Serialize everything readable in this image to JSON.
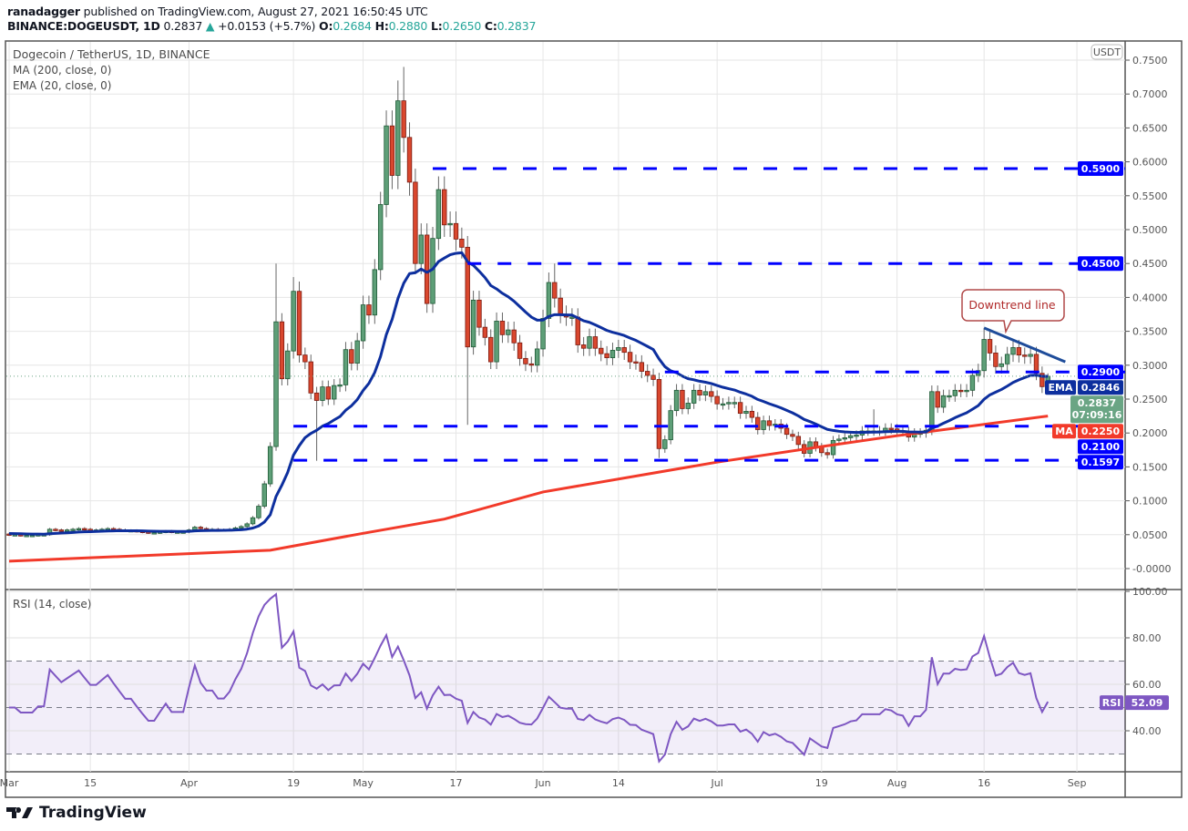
{
  "header": {
    "author": "ranadagger",
    "published": " published on TradingView.com, August 27, 2021 16:50:45 UTC",
    "symbol": "BINANCE:DOGEUSDT, 1D",
    "last": "0.2837",
    "change": "+0.0153 (+5.7%)",
    "o_label": "O:",
    "o": "0.2684",
    "h_label": "H:",
    "h": "0.2880",
    "l_label": "L:",
    "l": "0.2650",
    "c_label": "C:",
    "c": "0.2837"
  },
  "legend": {
    "title": "Dogecoin / TetherUS, 1D, BINANCE",
    "ma": "MA (200, close, 0)",
    "ema": "EMA (20, close, 0)",
    "rsi": "RSI (14, close)"
  },
  "footer": {
    "brand": "TradingView"
  },
  "colors": {
    "up": "#5e9f78",
    "down": "#d9472e",
    "ema": "#0d2f9e",
    "ma": "#f23a2a",
    "level": "#0000ff",
    "rsi": "#7e57c2",
    "last": "#6aa584"
  },
  "chart_data": {
    "type": "candlestick",
    "title": "Dogecoin / TetherUS, 1D, BINANCE",
    "start_date": "2021-03-01",
    "closes": [
      0.05,
      0.05,
      0.049,
      0.049,
      0.049,
      0.05,
      0.05,
      0.058,
      0.057,
      0.056,
      0.057,
      0.058,
      0.059,
      0.058,
      0.057,
      0.057,
      0.058,
      0.059,
      0.058,
      0.057,
      0.056,
      0.056,
      0.055,
      0.054,
      0.053,
      0.053,
      0.054,
      0.055,
      0.054,
      0.054,
      0.054,
      0.057,
      0.061,
      0.059,
      0.058,
      0.058,
      0.057,
      0.057,
      0.058,
      0.06,
      0.062,
      0.066,
      0.075,
      0.092,
      0.125,
      0.18,
      0.364,
      0.28,
      0.321,
      0.409,
      0.315,
      0.305,
      0.259,
      0.248,
      0.268,
      0.25,
      0.27,
      0.271,
      0.323,
      0.303,
      0.336,
      0.389,
      0.374,
      0.441,
      0.537,
      0.653,
      0.58,
      0.69,
      0.636,
      0.57,
      0.45,
      0.492,
      0.391,
      0.487,
      0.559,
      0.507,
      0.509,
      0.486,
      0.474,
      0.327,
      0.396,
      0.356,
      0.341,
      0.305,
      0.365,
      0.345,
      0.352,
      0.333,
      0.31,
      0.302,
      0.3,
      0.324,
      0.369,
      0.422,
      0.399,
      0.375,
      0.371,
      0.371,
      0.33,
      0.325,
      0.342,
      0.325,
      0.317,
      0.311,
      0.322,
      0.326,
      0.319,
      0.305,
      0.304,
      0.291,
      0.285,
      0.279,
      0.177,
      0.19,
      0.233,
      0.263,
      0.236,
      0.244,
      0.263,
      0.256,
      0.261,
      0.254,
      0.243,
      0.243,
      0.245,
      0.245,
      0.229,
      0.232,
      0.223,
      0.205,
      0.218,
      0.211,
      0.213,
      0.207,
      0.198,
      0.195,
      0.183,
      0.17,
      0.187,
      0.179,
      0.171,
      0.168,
      0.189,
      0.191,
      0.193,
      0.196,
      0.197,
      0.203,
      0.203,
      0.203,
      0.203,
      0.207,
      0.206,
      0.203,
      0.202,
      0.194,
      0.2,
      0.2,
      0.204,
      0.261,
      0.238,
      0.255,
      0.255,
      0.263,
      0.262,
      0.263,
      0.285,
      0.292,
      0.338,
      0.318,
      0.298,
      0.302,
      0.316,
      0.326,
      0.315,
      0.313,
      0.316,
      0.288,
      0.2684,
      0.2837
    ],
    "first_open": 0.051,
    "wick_overrides": [
      {
        "date": "2021-04-16",
        "high": 0.45
      },
      {
        "date": "2021-04-19",
        "high": 0.43
      },
      {
        "date": "2021-04-23",
        "low": 0.159
      },
      {
        "date": "2021-05-07",
        "high": 0.72
      },
      {
        "date": "2021-05-08",
        "high": 0.74
      },
      {
        "date": "2021-05-19",
        "low": 0.212
      },
      {
        "date": "2021-06-03",
        "high": 0.45
      },
      {
        "date": "2021-06-21",
        "low": 0.163
      },
      {
        "date": "2021-07-28",
        "high": 0.235
      },
      {
        "date": "2021-08-16",
        "high": 0.355
      },
      {
        "date": "2021-08-27",
        "high": 0.288,
        "low": 0.265
      }
    ],
    "ma200_points": [
      {
        "date": "2021-03-01",
        "value": 0.011
      },
      {
        "date": "2021-04-15",
        "value": 0.027
      },
      {
        "date": "2021-05-01",
        "value": 0.052
      },
      {
        "date": "2021-05-15",
        "value": 0.073
      },
      {
        "date": "2021-06-01",
        "value": 0.113
      },
      {
        "date": "2021-07-01",
        "value": 0.157
      },
      {
        "date": "2021-07-19",
        "value": 0.18
      },
      {
        "date": "2021-08-01",
        "value": 0.196
      },
      {
        "date": "2021-08-27",
        "value": 0.225
      }
    ],
    "ema_seed": 0.052,
    "levels": [
      {
        "value": 0.59,
        "label": "0.5900",
        "from": "2021-05-13"
      },
      {
        "value": 0.45,
        "label": "0.4500",
        "from": "2021-05-19"
      },
      {
        "value": 0.29,
        "label": "0.2900",
        "from": "2021-06-22"
      },
      {
        "value": 0.21,
        "label": "0.2100",
        "from": "2021-04-19"
      },
      {
        "value": 0.1597,
        "label": "0.1597",
        "from": "2021-04-19"
      }
    ],
    "downtrend_line": {
      "from": {
        "date": "2021-08-16",
        "value": 0.355
      },
      "to": {
        "date": "2021-08-30",
        "value": 0.305
      },
      "label": "Downtrend line"
    },
    "price_axis": {
      "unit": "USDT",
      "ticks": [
        "0.7500",
        "0.7000",
        "0.6500",
        "0.6000",
        "0.5500",
        "0.5000",
        "0.4500",
        "0.4000",
        "0.3500",
        "0.3000",
        "0.2500",
        "0.2000",
        "0.1500",
        "0.1000",
        "0.0500",
        "-0.0000"
      ],
      "range": [
        -0.03,
        0.78
      ]
    },
    "tags": {
      "ema_label": "EMA",
      "ema_value": "0.2846",
      "ma_label": "MA",
      "ma_value": "0.2250",
      "last_value": "0.2837",
      "countdown": "07:09:16"
    },
    "rsi": {
      "period": 14,
      "ticks": [
        "100.00",
        "80.00",
        "60.00",
        "40.00"
      ],
      "upper": 70,
      "middle": 50,
      "lower": 30,
      "tag_label": "RSI",
      "value": "52.09"
    },
    "x_ticks": [
      {
        "label": "Mar",
        "date": "2021-03-01"
      },
      {
        "label": "15",
        "date": "2021-03-15"
      },
      {
        "label": "Apr",
        "date": "2021-04-01"
      },
      {
        "label": "19",
        "date": "2021-04-19"
      },
      {
        "label": "May",
        "date": "2021-05-01"
      },
      {
        "label": "17",
        "date": "2021-05-17"
      },
      {
        "label": "Jun",
        "date": "2021-06-01"
      },
      {
        "label": "14",
        "date": "2021-06-14"
      },
      {
        "label": "Jul",
        "date": "2021-07-01"
      },
      {
        "label": "19",
        "date": "2021-07-19"
      },
      {
        "label": "Aug",
        "date": "2021-08-01"
      },
      {
        "label": "16",
        "date": "2021-08-16"
      },
      {
        "label": "Sep",
        "date": "2021-09-01"
      }
    ]
  }
}
